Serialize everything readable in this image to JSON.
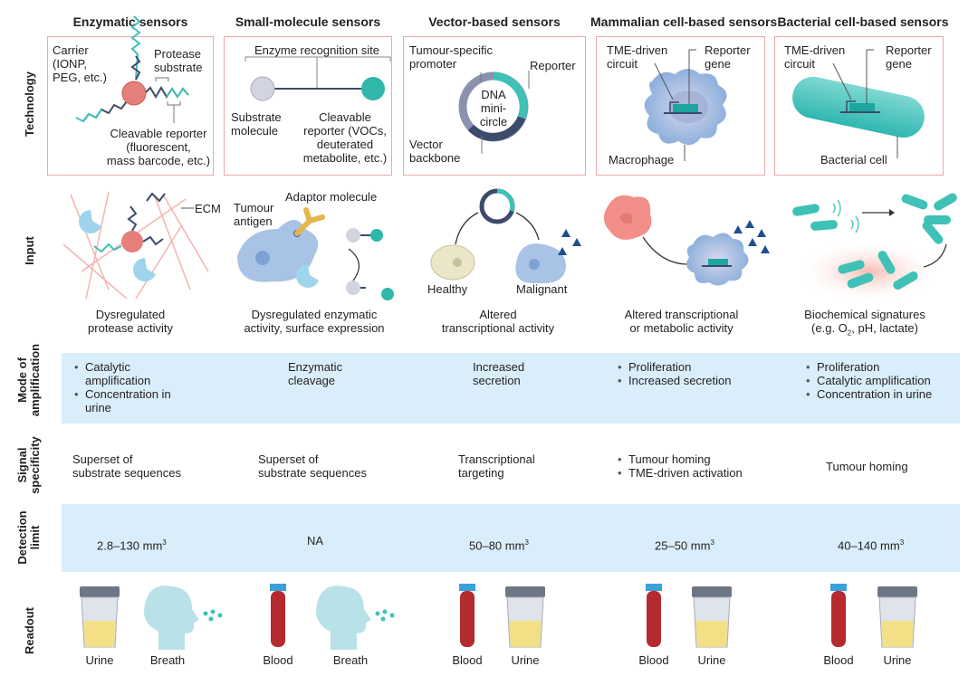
{
  "columns": [
    {
      "title": "Enzymatic sensors"
    },
    {
      "title": "Small-molecule sensors"
    },
    {
      "title": "Vector-based sensors"
    },
    {
      "title": "Mammalian cell-based sensors"
    },
    {
      "title": "Bacterial cell-based sensors"
    }
  ],
  "row_labels": {
    "technology": "Technology",
    "input": "Input",
    "amplification_1": "Mode of",
    "amplification_2": "amplification",
    "specificity_1": "Signal",
    "specificity_2": "specificity",
    "detection_1": "Detection",
    "detection_2": "limit",
    "readout": "Readout"
  },
  "technology": {
    "enzymatic": {
      "carrier": [
        "Carrier",
        "(IONP,",
        "PEG, etc.)"
      ],
      "substrate": [
        "Protease",
        "substrate"
      ],
      "reporter": [
        "Cleavable reporter",
        "(fluorescent,",
        "mass barcode, etc.)"
      ]
    },
    "small_molecule": {
      "site": "Enzyme recognition site",
      "substrate": [
        "Substrate",
        "molecule"
      ],
      "reporter": [
        "Cleavable",
        "reporter (VOCs,",
        "deuterated",
        "metabolite, etc.)"
      ]
    },
    "vector": {
      "promoter": [
        "Tumour-specific",
        "promoter"
      ],
      "reporter": "Reporter",
      "dna": [
        "DNA",
        "mini-",
        "circle"
      ],
      "backbone": [
        "Vector",
        "backbone"
      ]
    },
    "mammalian": {
      "circuit": [
        "TME-driven",
        "circuit"
      ],
      "gene": [
        "Reporter",
        "gene"
      ],
      "cell": "Macrophage"
    },
    "bacterial": {
      "circuit": [
        "TME-driven",
        "circuit"
      ],
      "gene": [
        "Reporter",
        "gene"
      ],
      "cell": "Bacterial cell"
    }
  },
  "input": {
    "enzymatic": {
      "ecm": "ECM",
      "caption": [
        "Dysregulated",
        "protease activity"
      ]
    },
    "small_molecule": {
      "antigen": [
        "Tumour",
        "antigen"
      ],
      "adaptor": "Adaptor molecule",
      "caption": [
        "Dysregulated enzymatic",
        "activity, surface expression"
      ]
    },
    "vector": {
      "healthy": "Healthy",
      "malignant": "Malignant",
      "caption": [
        "Altered",
        "transcriptional activity"
      ]
    },
    "mammalian": {
      "caption": [
        "Altered transcriptional",
        "or metabolic activity"
      ]
    },
    "bacterial": {
      "caption_1": "Biochemical signatures",
      "caption_2a": "(e.g. O",
      "caption_2sub": "2",
      "caption_2b": ", pH, lactate)"
    }
  },
  "amplification": {
    "enzymatic": [
      "Catalytic amplification",
      "Concentration in urine"
    ],
    "small_molecule": [
      "Enzymatic",
      "cleavage"
    ],
    "vector": [
      "Increased",
      "secretion"
    ],
    "mammalian": [
      "Proliferation",
      "Increased secretion"
    ],
    "bacterial": [
      "Proliferation",
      "Catalytic amplification",
      "Concentration in urine"
    ]
  },
  "specificity": {
    "enzymatic": [
      "Superset of",
      "substrate sequences"
    ],
    "small_molecule": [
      "Superset of",
      "substrate sequences"
    ],
    "vector": [
      "Transcriptional",
      "targeting"
    ],
    "mammalian": [
      "Tumour homing",
      "TME-driven activation"
    ],
    "bacterial": "Tumour homing"
  },
  "detection_limit": {
    "unit": "mm",
    "unit_exp": "3",
    "enzymatic": "2.8–130",
    "small_molecule": "NA",
    "vector": "50–80",
    "mammalian": "25–50",
    "bacterial": "40–140"
  },
  "readout": {
    "enzymatic": [
      "Urine",
      "Breath"
    ],
    "small_molecule": [
      "Blood",
      "Breath"
    ],
    "vector": [
      "Blood",
      "Urine"
    ],
    "mammalian": [
      "Blood",
      "Urine"
    ],
    "bacterial": [
      "Blood",
      "Urine"
    ]
  },
  "colors": {
    "band": "#d9eefa",
    "box_border": "#f0a8a8",
    "teal": "#3fc1b8",
    "navy": "#3c4a6b",
    "carrier": "#e57f7a",
    "blood": "#b52a2e",
    "cell": "#a9c3e6"
  }
}
